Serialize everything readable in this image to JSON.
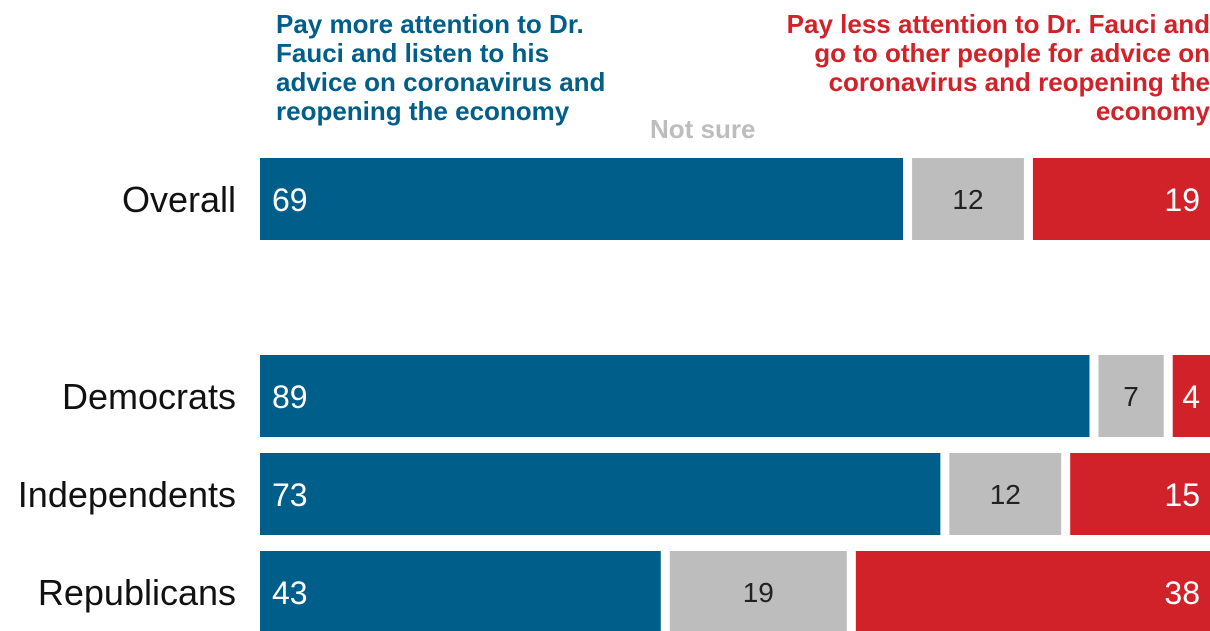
{
  "chart_data": {
    "type": "bar",
    "orientation": "horizontal",
    "stacked": true,
    "categories": [
      "Overall",
      "Democrats",
      "Independents",
      "Republicans"
    ],
    "series": [
      {
        "name": "Pay more attention to Dr. Fauci and listen to his advice on coronavirus and reopening the economy",
        "values": [
          69,
          89,
          73,
          43
        ],
        "color": "#005e8a"
      },
      {
        "name": "Not sure",
        "values": [
          12,
          7,
          12,
          19
        ],
        "color": "#bdbdbd"
      },
      {
        "name": "Pay less attention to Dr. Fauci and go to other people for advice on coronavirus and reopening the economy",
        "values": [
          19,
          4,
          15,
          38
        ],
        "color": "#d12229"
      }
    ],
    "xlim": [
      0,
      100
    ],
    "legend_placement": "top",
    "grid": false
  }
}
